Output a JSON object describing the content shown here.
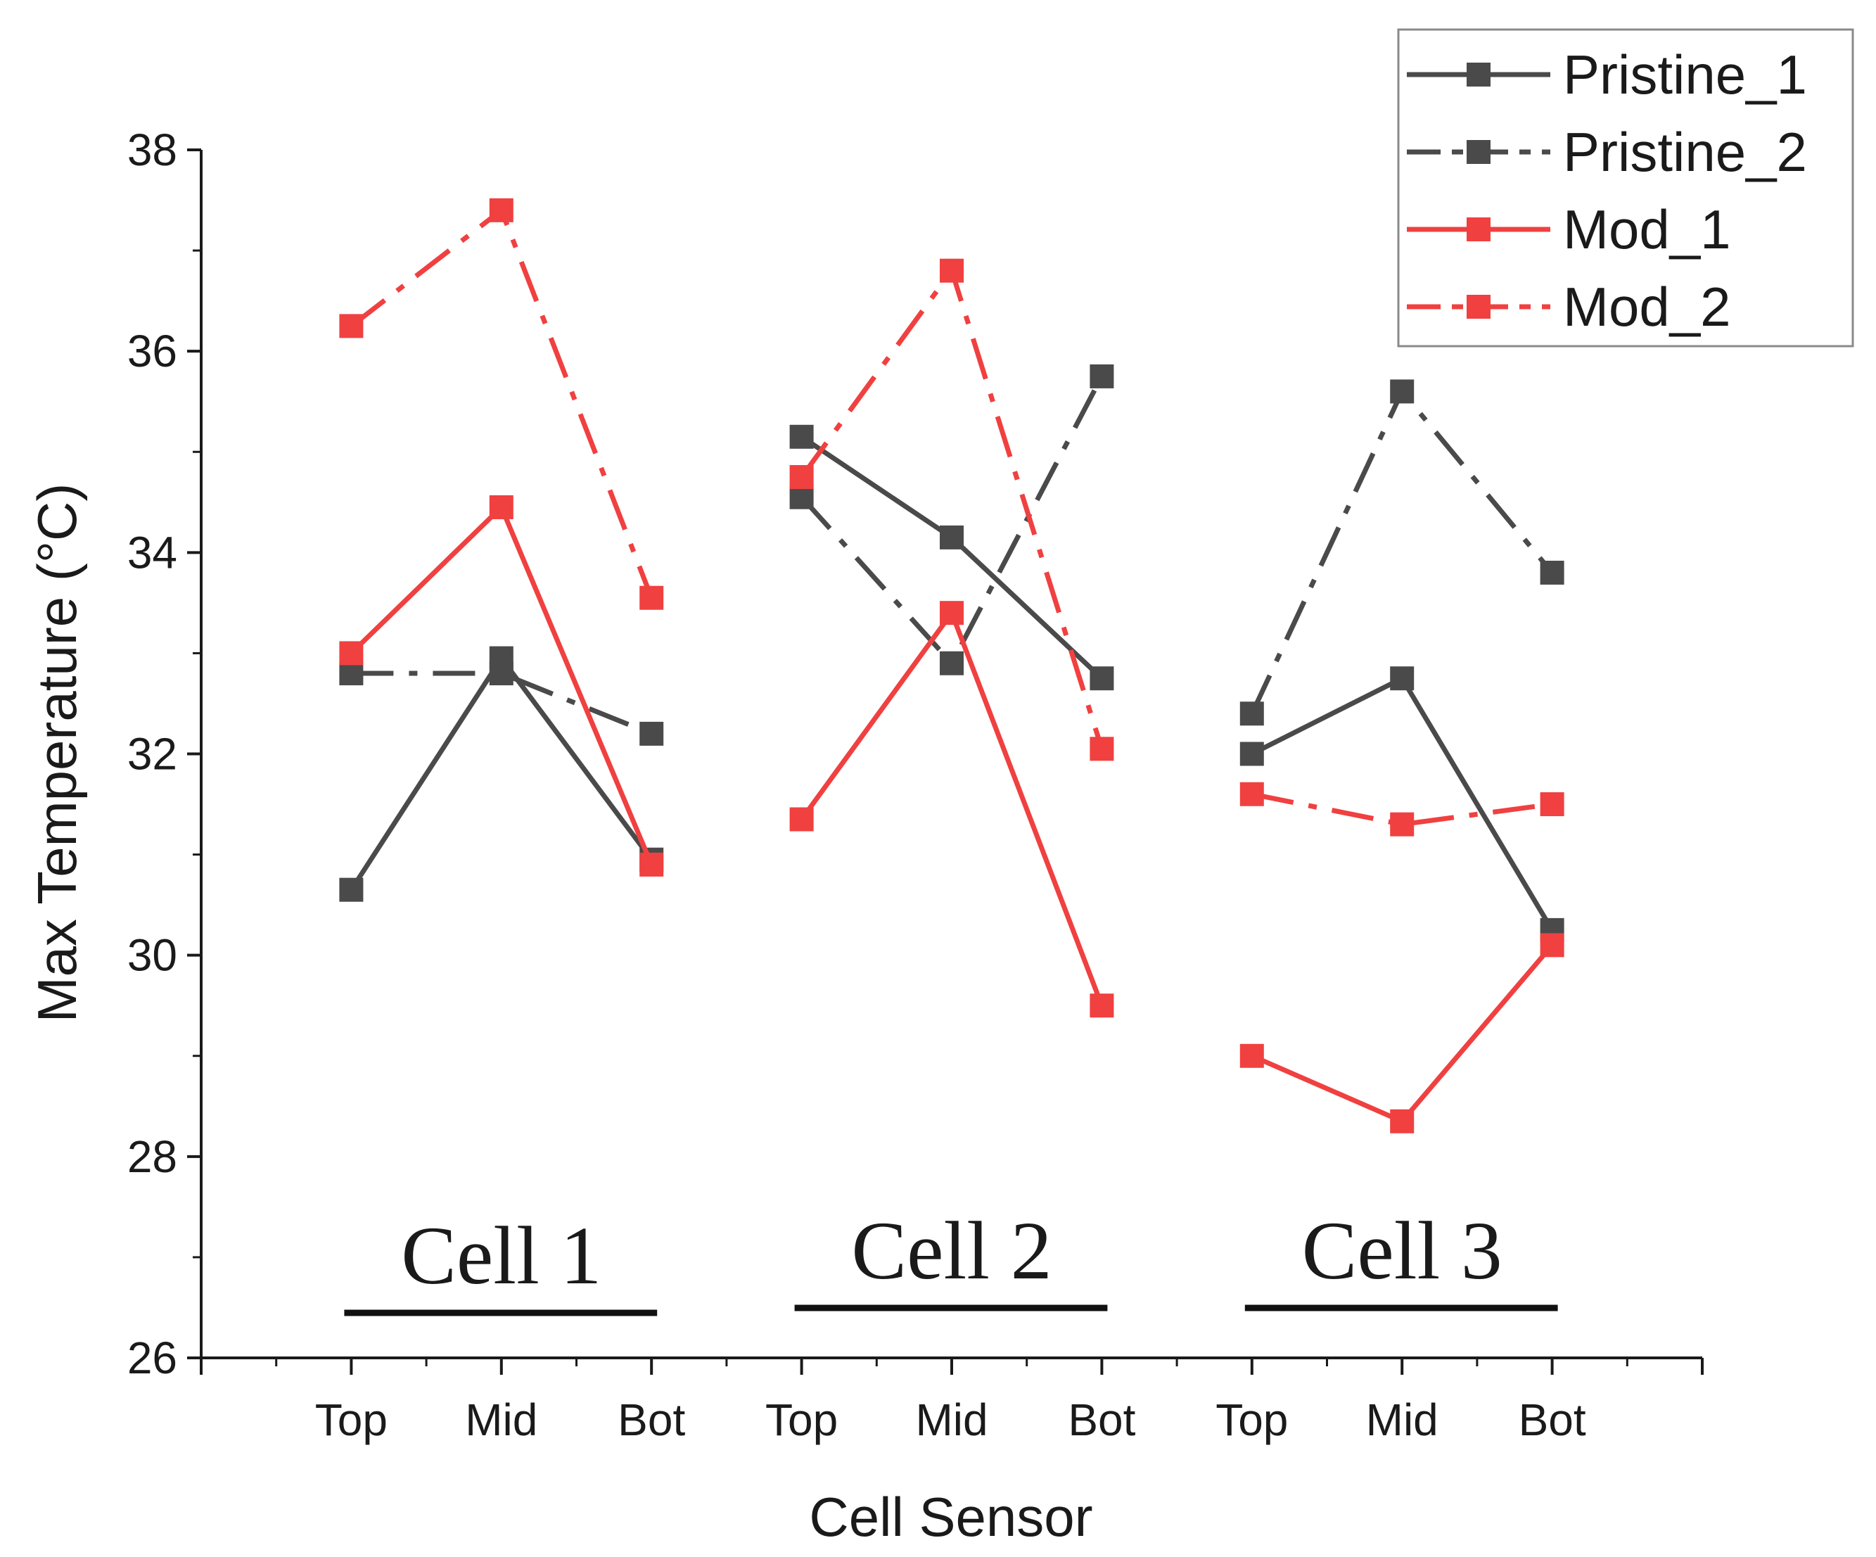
{
  "chart_data": {
    "type": "line",
    "title": "",
    "xlabel": "Cell Sensor",
    "ylabel": "Max Temperature (°C)",
    "ylim": [
      26,
      38
    ],
    "yticks": [
      26,
      28,
      30,
      32,
      34,
      36,
      38
    ],
    "xlim": [
      0,
      10
    ],
    "categories": [
      "Top",
      "Mid",
      "Bot",
      "Top",
      "Mid",
      "Bot",
      "Top",
      "Mid",
      "Bot"
    ],
    "groups": [
      {
        "label": "Cell 1",
        "from": 1,
        "to": 3
      },
      {
        "label": "Cell 2",
        "from": 4,
        "to": 6
      },
      {
        "label": "Cell 3",
        "from": 7,
        "to": 9
      }
    ],
    "legend_position": "top-right",
    "grid": false,
    "series": [
      {
        "name": "Pristine_1",
        "color": "#4a4a4a",
        "dash": "solid",
        "values": [
          30.65,
          32.95,
          30.95,
          35.15,
          34.15,
          32.75,
          32.0,
          32.75,
          30.25
        ]
      },
      {
        "name": "Pristine_2",
        "color": "#4a4a4a",
        "dash": "dashdot",
        "values": [
          32.8,
          32.8,
          32.2,
          34.55,
          32.9,
          35.75,
          32.4,
          35.6,
          33.8
        ]
      },
      {
        "name": "Mod_1",
        "color": "#f04040",
        "dash": "solid",
        "values": [
          33.0,
          34.45,
          30.9,
          31.35,
          33.4,
          29.5,
          29.0,
          28.35,
          30.1
        ]
      },
      {
        "name": "Mod_2",
        "color": "#f04040",
        "dash": "dashdot",
        "values": [
          36.25,
          37.4,
          33.55,
          34.75,
          36.8,
          32.05,
          31.6,
          31.3,
          31.5
        ]
      }
    ]
  }
}
